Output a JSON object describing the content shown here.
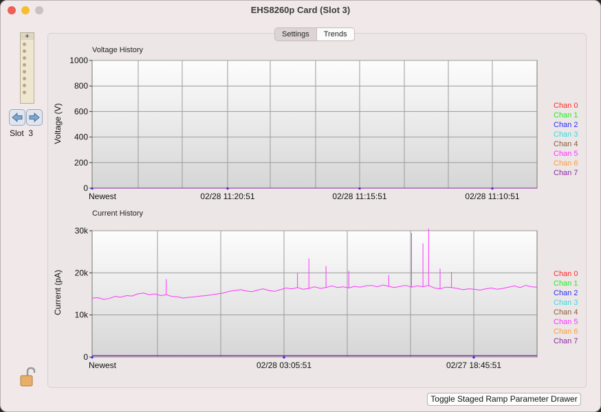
{
  "window": {
    "title": "EHS8260p Card (Slot 3)",
    "traffic_lights": [
      "#ee5e57",
      "#f5bd2f",
      "#c9c2c2"
    ]
  },
  "sidebar": {
    "slot_label": "Slot  3",
    "thumbnail_plus": "+",
    "prev_icon": "arrow-left-icon",
    "next_icon": "arrow-right-icon",
    "lock_icon": "unlocked-padlock-icon"
  },
  "tabs": [
    {
      "label": "Settings",
      "active": false
    },
    {
      "label": "Trends",
      "active": true
    }
  ],
  "buttons": {
    "drawer": "Toggle Staged Ramp Parameter Drawer"
  },
  "colors": {
    "chan": [
      "#ff2a2a",
      "#22ee22",
      "#2b2bff",
      "#33dddd",
      "#8c5a3a",
      "#ff33ff",
      "#ff9a3a",
      "#8a2aa0"
    ],
    "plot_top": "#fdfdfd",
    "plot_bottom": "#d6d6d6",
    "grid": "#9a9a9a"
  },
  "chart_data": [
    {
      "type": "line",
      "title": "Voltage History",
      "ylabel": "Voltage (V)",
      "ylim": [
        0,
        1000
      ],
      "yticks": [
        "0",
        "200",
        "400",
        "600",
        "800",
        "1000"
      ],
      "ytick_values": [
        0,
        200,
        400,
        600,
        800,
        1000
      ],
      "xtick_labels": [
        "Newest",
        "02/28 11:20:51",
        "02/28 11:15:51",
        "02/28 11:10:51"
      ],
      "legend": [
        "Chan 0",
        "Chan 1",
        "Chan 2",
        "Chan 3",
        "Chan 4",
        "Chan 5",
        "Chan 6",
        "Chan 7"
      ],
      "legend_position": "right",
      "grid": true,
      "series": [
        {
          "name": "Chan 0",
          "values": [
            0,
            0
          ]
        },
        {
          "name": "Chan 1",
          "values": [
            0,
            0
          ]
        },
        {
          "name": "Chan 2",
          "values": [
            0,
            0
          ]
        },
        {
          "name": "Chan 3",
          "values": [
            0,
            0
          ]
        },
        {
          "name": "Chan 4",
          "values": [
            0,
            0
          ]
        },
        {
          "name": "Chan 5",
          "values": [
            0,
            0
          ]
        },
        {
          "name": "Chan 6",
          "values": [
            0,
            0
          ]
        },
        {
          "name": "Chan 7",
          "values": [
            0,
            0
          ]
        }
      ]
    },
    {
      "type": "line",
      "title": "Current History",
      "ylabel": "Current (pA)",
      "ylim": [
        0,
        30000
      ],
      "yticks": [
        "0",
        "10k",
        "20k",
        "30k"
      ],
      "ytick_values": [
        0,
        10000,
        20000,
        30000
      ],
      "xtick_labels": [
        "Newest",
        "02/28 03:05:51",
        "02/27 18:45:51"
      ],
      "legend": [
        "Chan 0",
        "Chan 1",
        "Chan 2",
        "Chan 3",
        "Chan 4",
        "Chan 5",
        "Chan 6",
        "Chan 7"
      ],
      "legend_position": "right",
      "grid": true,
      "series": [
        {
          "name": "Chan 5",
          "values": [
            14000,
            14100,
            13700,
            13900,
            14400,
            14200,
            14600,
            14500,
            15000,
            15200,
            14800,
            15000,
            14600,
            14800,
            14400,
            14300,
            14000,
            14200,
            14300,
            14500,
            14600,
            14800,
            15000,
            15200,
            15600,
            15800,
            16000,
            15700,
            15500,
            15900,
            16200,
            15800,
            15600,
            16000,
            16400,
            16200,
            16500,
            16100,
            16300,
            16700,
            16300,
            16500,
            16900,
            16500,
            16700,
            16400,
            16800,
            16600,
            16900,
            17000,
            16700,
            17100,
            16800,
            16500,
            16800,
            17000,
            16600,
            16900,
            16700,
            17000,
            16400,
            16200,
            16600,
            16500,
            16300,
            16000,
            16200,
            16100,
            15900,
            16200,
            16400,
            16100,
            16300,
            16600,
            16900,
            16500,
            17000,
            16700,
            16600
          ]
        },
        {
          "name": "Chan 7",
          "values": [
            0,
            0
          ]
        }
      ],
      "spikes": [
        [
          13,
          18500
        ],
        [
          36,
          20000
        ],
        [
          38,
          23400
        ],
        [
          41,
          21600
        ],
        [
          45,
          20500
        ],
        [
          52,
          19500
        ],
        [
          56,
          29500
        ],
        [
          58,
          27000
        ],
        [
          59,
          30500
        ],
        [
          61,
          21000
        ],
        [
          63,
          20200
        ]
      ]
    }
  ]
}
